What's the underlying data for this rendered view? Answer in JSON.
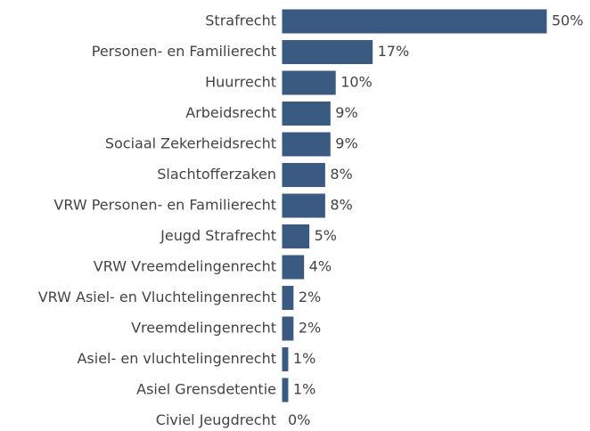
{
  "chart_data": {
    "type": "bar",
    "orientation": "horizontal",
    "color": "#3a5a82",
    "categories": [
      "Strafrecht",
      "Personen- en Familierecht",
      "Huurrecht",
      "Arbeidsrecht",
      "Sociaal Zekerheidsrecht",
      "Slachtofferzaken",
      "VRW Personen- en Familierecht",
      "Jeugd Strafrecht",
      "VRW Vreemdelingenrecht",
      "VRW Asiel- en Vluchtelingenrecht",
      "Vreemdelingenrecht",
      "Asiel- en vluchtelingenrecht",
      "Asiel Grensdetentie",
      "Civiel Jeugdrecht"
    ],
    "values": [
      50,
      17,
      10,
      9,
      9,
      8,
      8,
      5,
      4,
      2,
      2,
      1,
      1,
      0
    ],
    "value_labels": [
      "50%",
      "17%",
      "10%",
      "9%",
      "9%",
      "8%",
      "8%",
      "5%",
      "4%",
      "2%",
      "2%",
      "1%",
      "1%",
      "0%"
    ]
  }
}
